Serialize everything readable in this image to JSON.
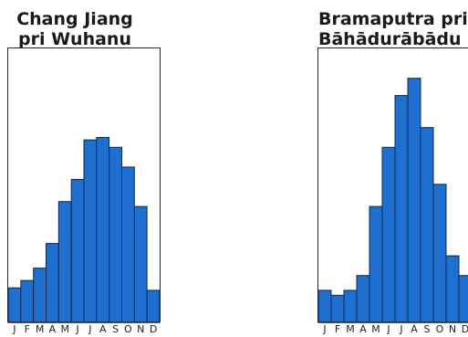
{
  "chart_data": [
    {
      "type": "bar",
      "title_lines": [
        "Chang Jiang",
        "pri Wuhanu"
      ],
      "categories": [
        "J",
        "F",
        "M",
        "A",
        "M",
        "J",
        "J",
        "A",
        "S",
        "O",
        "N",
        "D"
      ],
      "values": [
        14,
        17,
        22,
        32,
        49,
        58,
        74,
        75,
        71,
        63,
        47,
        13
      ],
      "ylim": [
        0,
        100
      ],
      "bar_color": "#1f6fd1"
    },
    {
      "type": "bar",
      "title_lines": [
        "Bramaputra pri",
        "Bāhādurābādu"
      ],
      "categories": [
        "J",
        "F",
        "M",
        "A",
        "M",
        "J",
        "J",
        "A",
        "S",
        "O",
        "N",
        "D"
      ],
      "values": [
        13,
        11,
        13,
        19,
        47,
        71,
        92,
        99,
        79,
        56,
        27,
        19
      ],
      "ylim": [
        0,
        100
      ],
      "bar_color": "#1f6fd1"
    }
  ]
}
